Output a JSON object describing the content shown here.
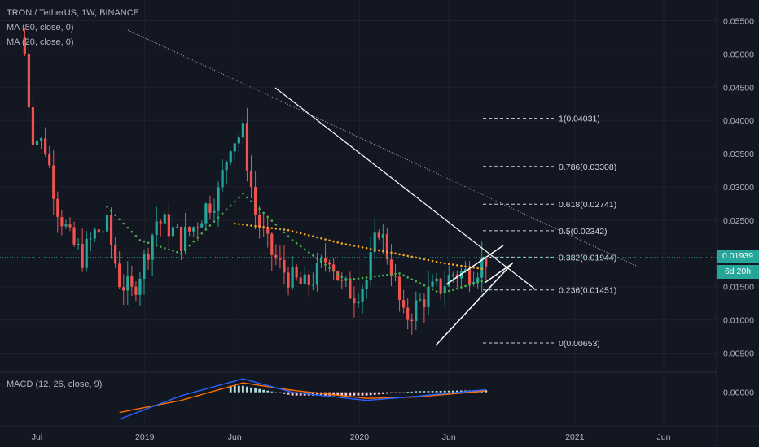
{
  "header": {
    "title": "TRON / TetherUS, 1W, BINANCE",
    "ma50": "MA (50, close, 0)",
    "ma20": "MA (20, close, 0)",
    "macd": "MACD (12, 26, close, 9)"
  },
  "price_badge": {
    "value": "0.01939",
    "countdown": "6d 20h"
  },
  "colors": {
    "up": "#26a69a",
    "down": "#ef5350",
    "ma50": "#f5a623",
    "ma20": "#4caf50",
    "macd": "#2962ff",
    "signal": "#ff6d00",
    "badge": "#26a69a",
    "grid": "#1e222d"
  },
  "chart_data": [
    {
      "type": "candlestick",
      "title": "TRON / TetherUS, 1W, BINANCE",
      "x_tick_labels": [
        "Jul",
        "2019",
        "Jun",
        "2020",
        "Jun",
        "2021",
        "Jun"
      ],
      "y_tick_labels": [
        "0.05500",
        "0.05000",
        "0.04500",
        "0.04000",
        "0.03500",
        "0.03000",
        "0.02500",
        "0.02000",
        "0.01500",
        "0.01000",
        "0.00500"
      ],
      "ylim": [
        0.0025,
        0.0575
      ],
      "close_series": [
        {
          "date": "2018-06-11",
          "close": 0.05
        },
        {
          "date": "2018-06-18",
          "close": 0.043
        },
        {
          "date": "2018-06-25",
          "close": 0.038
        },
        {
          "date": "2018-07-16",
          "close": 0.036
        },
        {
          "date": "2018-08-06",
          "close": 0.027
        },
        {
          "date": "2018-08-27",
          "close": 0.022
        },
        {
          "date": "2018-09-17",
          "close": 0.0195
        },
        {
          "date": "2018-10-08",
          "close": 0.023
        },
        {
          "date": "2018-10-29",
          "close": 0.024
        },
        {
          "date": "2018-11-19",
          "close": 0.016
        },
        {
          "date": "2018-12-10",
          "close": 0.014
        },
        {
          "date": "2018-12-31",
          "close": 0.019
        },
        {
          "date": "2019-01-21",
          "close": 0.025
        },
        {
          "date": "2019-02-11",
          "close": 0.024
        },
        {
          "date": "2019-03-04",
          "close": 0.022
        },
        {
          "date": "2019-03-25",
          "close": 0.024
        },
        {
          "date": "2019-04-15",
          "close": 0.027
        },
        {
          "date": "2019-05-06",
          "close": 0.029
        },
        {
          "date": "2019-05-27",
          "close": 0.037
        },
        {
          "date": "2019-06-17",
          "close": 0.038
        },
        {
          "date": "2019-07-08",
          "close": 0.026
        },
        {
          "date": "2019-07-29",
          "close": 0.021
        },
        {
          "date": "2019-08-19",
          "close": 0.018
        },
        {
          "date": "2019-09-09",
          "close": 0.016
        },
        {
          "date": "2019-09-30",
          "close": 0.015
        },
        {
          "date": "2019-10-21",
          "close": 0.017
        },
        {
          "date": "2019-11-11",
          "close": 0.02
        },
        {
          "date": "2019-12-02",
          "close": 0.015
        },
        {
          "date": "2019-12-23",
          "close": 0.014
        },
        {
          "date": "2020-01-13",
          "close": 0.016
        },
        {
          "date": "2020-02-03",
          "close": 0.024
        },
        {
          "date": "2020-02-24",
          "close": 0.018
        },
        {
          "date": "2020-03-16",
          "close": 0.01
        },
        {
          "date": "2020-04-06",
          "close": 0.012
        },
        {
          "date": "2020-04-27",
          "close": 0.014
        },
        {
          "date": "2020-05-18",
          "close": 0.015
        },
        {
          "date": "2020-06-08",
          "close": 0.017
        },
        {
          "date": "2020-06-29",
          "close": 0.017
        },
        {
          "date": "2020-07-20",
          "close": 0.018
        },
        {
          "date": "2020-08-03",
          "close": 0.0194
        }
      ],
      "moving_averages": [
        {
          "name": "MA (50, close, 0)",
          "points": [
            {
              "date": "2019-06-03",
              "value": 0.0245
            },
            {
              "date": "2019-09-02",
              "value": 0.0235
            },
            {
              "date": "2019-12-02",
              "value": 0.0215
            },
            {
              "date": "2020-03-02",
              "value": 0.02
            },
            {
              "date": "2020-05-25",
              "value": 0.0185
            },
            {
              "date": "2020-08-03",
              "value": 0.0176
            }
          ]
        },
        {
          "name": "MA (20, close, 0)",
          "points": [
            {
              "date": "2018-10-29",
              "value": 0.027
            },
            {
              "date": "2018-12-24",
              "value": 0.022
            },
            {
              "date": "2019-03-04",
              "value": 0.02
            },
            {
              "date": "2019-06-17",
              "value": 0.029
            },
            {
              "date": "2019-09-09",
              "value": 0.022
            },
            {
              "date": "2019-12-09",
              "value": 0.016
            },
            {
              "date": "2020-03-09",
              "value": 0.017
            },
            {
              "date": "2020-05-18",
              "value": 0.014
            },
            {
              "date": "2020-08-03",
              "value": 0.016
            }
          ]
        }
      ],
      "fibonacci_levels": [
        {
          "label": "1(0.04031)",
          "value": 0.04031
        },
        {
          "label": "0.786(0.03308)",
          "value": 0.03308
        },
        {
          "label": "0.618(0.02741)",
          "value": 0.02741
        },
        {
          "label": "0.5(0.02342)",
          "value": 0.02342
        },
        {
          "label": "0.382(0.01944)",
          "value": 0.01944
        },
        {
          "label": "0.236(0.01451)",
          "value": 0.01451
        },
        {
          "label": "0(0.00653)",
          "value": 0.00653
        }
      ],
      "current_price": 0.01939
    },
    {
      "type": "bar",
      "title": "MACD (12, 26, close, 9)",
      "y_tick_labels": [
        "0.00000"
      ],
      "series": [
        {
          "name": "MACD",
          "points": [
            {
              "date": "2018-11-19",
              "value": -0.004
            },
            {
              "date": "2019-03-04",
              "value": -0.0005
            },
            {
              "date": "2019-06-17",
              "value": 0.002
            },
            {
              "date": "2019-09-09",
              "value": 0.0
            },
            {
              "date": "2020-01-13",
              "value": -0.0012
            },
            {
              "date": "2020-04-06",
              "value": -0.0006
            },
            {
              "date": "2020-08-03",
              "value": 0.0004
            }
          ]
        },
        {
          "name": "Signal",
          "points": [
            {
              "date": "2018-11-19",
              "value": -0.003
            },
            {
              "date": "2019-03-04",
              "value": -0.0012
            },
            {
              "date": "2019-06-17",
              "value": 0.0014
            },
            {
              "date": "2019-09-09",
              "value": 0.0003
            },
            {
              "date": "2020-01-13",
              "value": -0.0009
            },
            {
              "date": "2020-04-06",
              "value": -0.0007
            },
            {
              "date": "2020-08-03",
              "value": 0.0002
            }
          ]
        }
      ]
    }
  ]
}
